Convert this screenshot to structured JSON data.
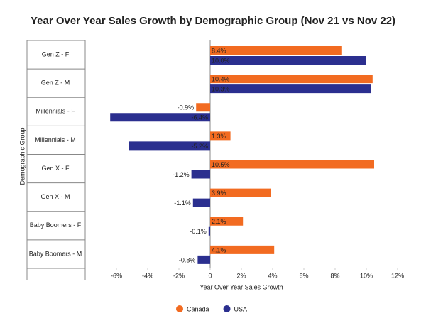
{
  "chart_data": {
    "type": "bar",
    "orientation": "horizontal",
    "title": "Year Over Year Sales Growth by Demographic Group (Nov 21 vs Nov 22)",
    "x_label": "Year Over Year Sales Growth",
    "y_label": "Demographic Group",
    "categories": [
      "Gen Z - F",
      "Gen Z - M",
      "Millennials - F",
      "Millennials - M",
      "Gen X - F",
      "Gen X - M",
      "Baby Boomers - F",
      "Baby Boomers - M"
    ],
    "series": [
      {
        "name": "Canada",
        "color": "#f26b21",
        "values": [
          8.4,
          10.4,
          -0.9,
          1.3,
          10.5,
          3.9,
          2.1,
          4.1
        ],
        "value_labels": [
          "8.4%",
          "10.4%",
          "-0.9%",
          "1.3%",
          "10.5%",
          "3.9%",
          "2.1%",
          "4.1%"
        ]
      },
      {
        "name": "USA",
        "color": "#2b2f8f",
        "values": [
          10.0,
          10.3,
          -6.4,
          -5.2,
          -1.2,
          -1.1,
          -0.1,
          -0.8
        ],
        "value_labels": [
          "10.0%",
          "10.3%",
          "-6.4%",
          "-5.2%",
          "-1.2%",
          "-1.1%",
          "-0.1%",
          "-0.8%"
        ]
      }
    ],
    "xlim": [
      -8,
      12
    ],
    "xticks": [
      {
        "value": -6,
        "label": "-6%"
      },
      {
        "value": -4,
        "label": "-4%"
      },
      {
        "value": -2,
        "label": "-2%"
      },
      0,
      {
        "value": 2,
        "label": "2%"
      },
      {
        "value": 4,
        "label": "4%"
      },
      {
        "value": 6,
        "label": "6%"
      },
      {
        "value": 8,
        "label": "8%"
      },
      {
        "value": 10,
        "label": "10%"
      },
      {
        "value": 12,
        "label": "12%"
      }
    ],
    "legend": "bottom"
  }
}
